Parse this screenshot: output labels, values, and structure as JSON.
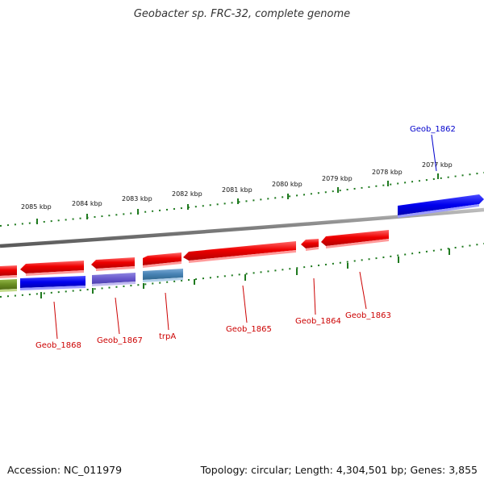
{
  "title": "Geobacter sp. FRC-32, complete genome",
  "footer": {
    "accession": "Accession: NC_011979",
    "stats": "Topology: circular; Length: 4,304,501 bp; Genes: 3,855"
  },
  "scale_labels": [
    "2085 kbp",
    "2084 kbp",
    "2083 kbp",
    "2082 kbp",
    "2081 kbp",
    "2080 kbp",
    "2079 kbp",
    "2078 kbp",
    "2077 kbp"
  ],
  "gene_labels": [
    {
      "name": "Geob_1862",
      "color": "#0000cc"
    },
    {
      "name": "Geob_1863",
      "color": "#cc0000"
    },
    {
      "name": "Geob_1864",
      "color": "#cc0000"
    },
    {
      "name": "Geob_1865",
      "color": "#cc0000"
    },
    {
      "name": "trpA",
      "color": "#cc0000"
    },
    {
      "name": "Geob_1867",
      "color": "#cc0000"
    },
    {
      "name": "Geob_1868",
      "color": "#cc0000"
    }
  ],
  "colors": {
    "backbone": "#7f7f7f",
    "tick": "#1f7a1f",
    "red_gene": "#ee0000",
    "blue_gene": "#0000ee",
    "purple_gene": "#6a5acd",
    "steelblue_gene": "#4682b4",
    "olive_gene": "#6b8e23"
  }
}
